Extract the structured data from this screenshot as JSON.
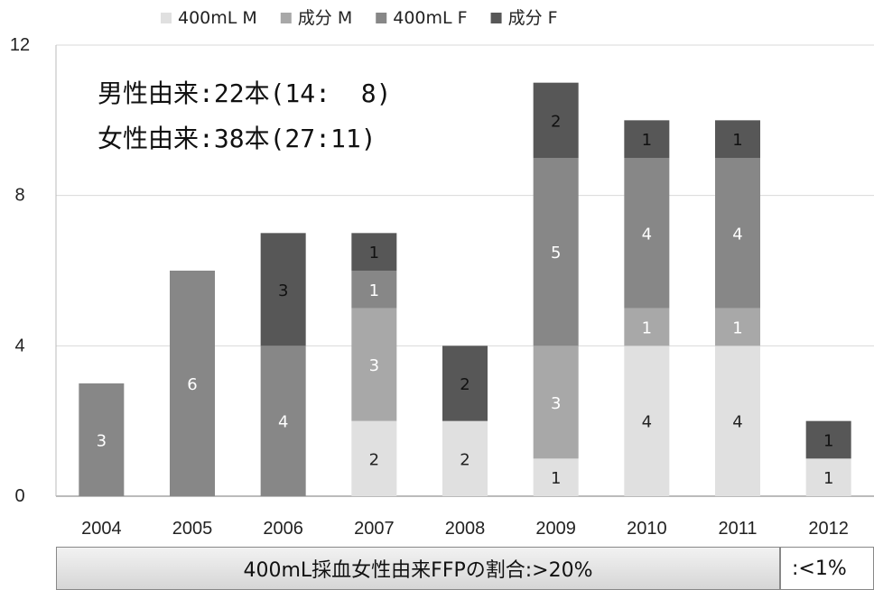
{
  "chart_data": {
    "type": "bar",
    "stacked": true,
    "categories": [
      "2004",
      "2005",
      "2006",
      "2007",
      "2008",
      "2009",
      "2010",
      "2011",
      "2012"
    ],
    "series": [
      {
        "name": "400mL M",
        "color": "#e0e0e0",
        "label_color": "#222222",
        "values": [
          0,
          0,
          0,
          2,
          2,
          1,
          4,
          4,
          1
        ]
      },
      {
        "name": "成分 M",
        "color": "#a8a8a8",
        "label_color": "#ffffff",
        "values": [
          0,
          0,
          0,
          3,
          0,
          3,
          1,
          1,
          0
        ]
      },
      {
        "name": "400mL F",
        "color": "#878787",
        "label_color": "#ffffff",
        "values": [
          3,
          6,
          4,
          1,
          0,
          5,
          4,
          4,
          0
        ]
      },
      {
        "name": "成分 F",
        "color": "#575757",
        "label_color": "#111111",
        "values": [
          0,
          0,
          3,
          1,
          2,
          2,
          1,
          1,
          1
        ]
      }
    ],
    "yticks": [
      "0",
      "4",
      "8",
      "12"
    ],
    "ylim": [
      0,
      12
    ],
    "grid": "horizontal",
    "legend_position": "top",
    "annotations": [
      "男性由来:22本(14:  8)",
      "女性由来:38本(27:11)"
    ]
  },
  "footer": {
    "main_text": "400mL採血女性由来FFPの割合:>20%",
    "side_text": ":<1%"
  }
}
